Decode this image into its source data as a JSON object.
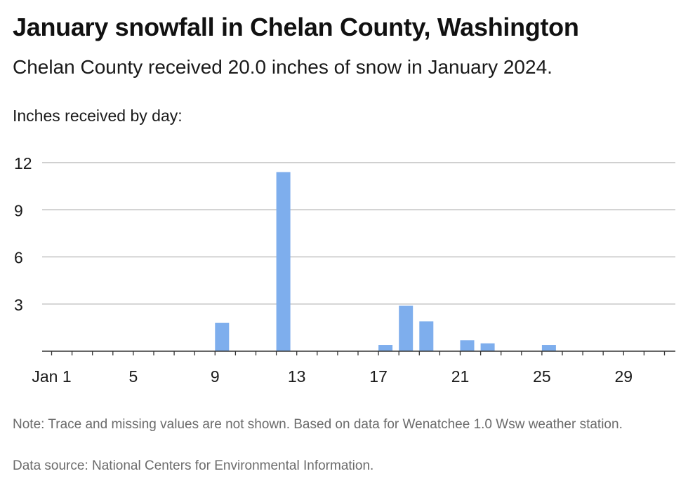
{
  "title": "January snowfall in Chelan County, Washington",
  "subtitle": "Chelan County received 20.0 inches of snow in January 2024.",
  "note": "Note: Trace and missing values are not shown. Based on data for Wenatchee 1.0 Wsw weather station.",
  "source": "Data source: National Centers for Environmental Information.",
  "colors": {
    "bar": "#7eaeed",
    "grid": "#b3b3b3",
    "axis": "#333333"
  },
  "chart_data": {
    "type": "bar",
    "ylabel": "Inches received by day:",
    "xlabel": "",
    "days": [
      1,
      2,
      3,
      4,
      5,
      6,
      7,
      8,
      9,
      10,
      11,
      12,
      13,
      14,
      15,
      16,
      17,
      18,
      19,
      20,
      21,
      22,
      23,
      24,
      25,
      26,
      27,
      28,
      29,
      30,
      31
    ],
    "values": [
      0,
      0,
      0,
      0,
      0,
      0,
      0,
      0,
      1.8,
      0,
      0,
      11.4,
      0,
      0,
      0,
      0,
      0.4,
      2.9,
      1.9,
      0,
      0.7,
      0.5,
      0,
      0,
      0.4,
      0,
      0,
      0,
      0,
      0,
      0
    ],
    "x_ticks": [
      {
        "day": 1,
        "label": "Jan 1"
      },
      {
        "day": 5,
        "label": "5"
      },
      {
        "day": 9,
        "label": "9"
      },
      {
        "day": 13,
        "label": "13"
      },
      {
        "day": 17,
        "label": "17"
      },
      {
        "day": 21,
        "label": "21"
      },
      {
        "day": 25,
        "label": "25"
      },
      {
        "day": 29,
        "label": "29"
      }
    ],
    "y_ticks": [
      3,
      6,
      9,
      12
    ],
    "ylim": [
      0,
      12
    ],
    "grid": true
  }
}
